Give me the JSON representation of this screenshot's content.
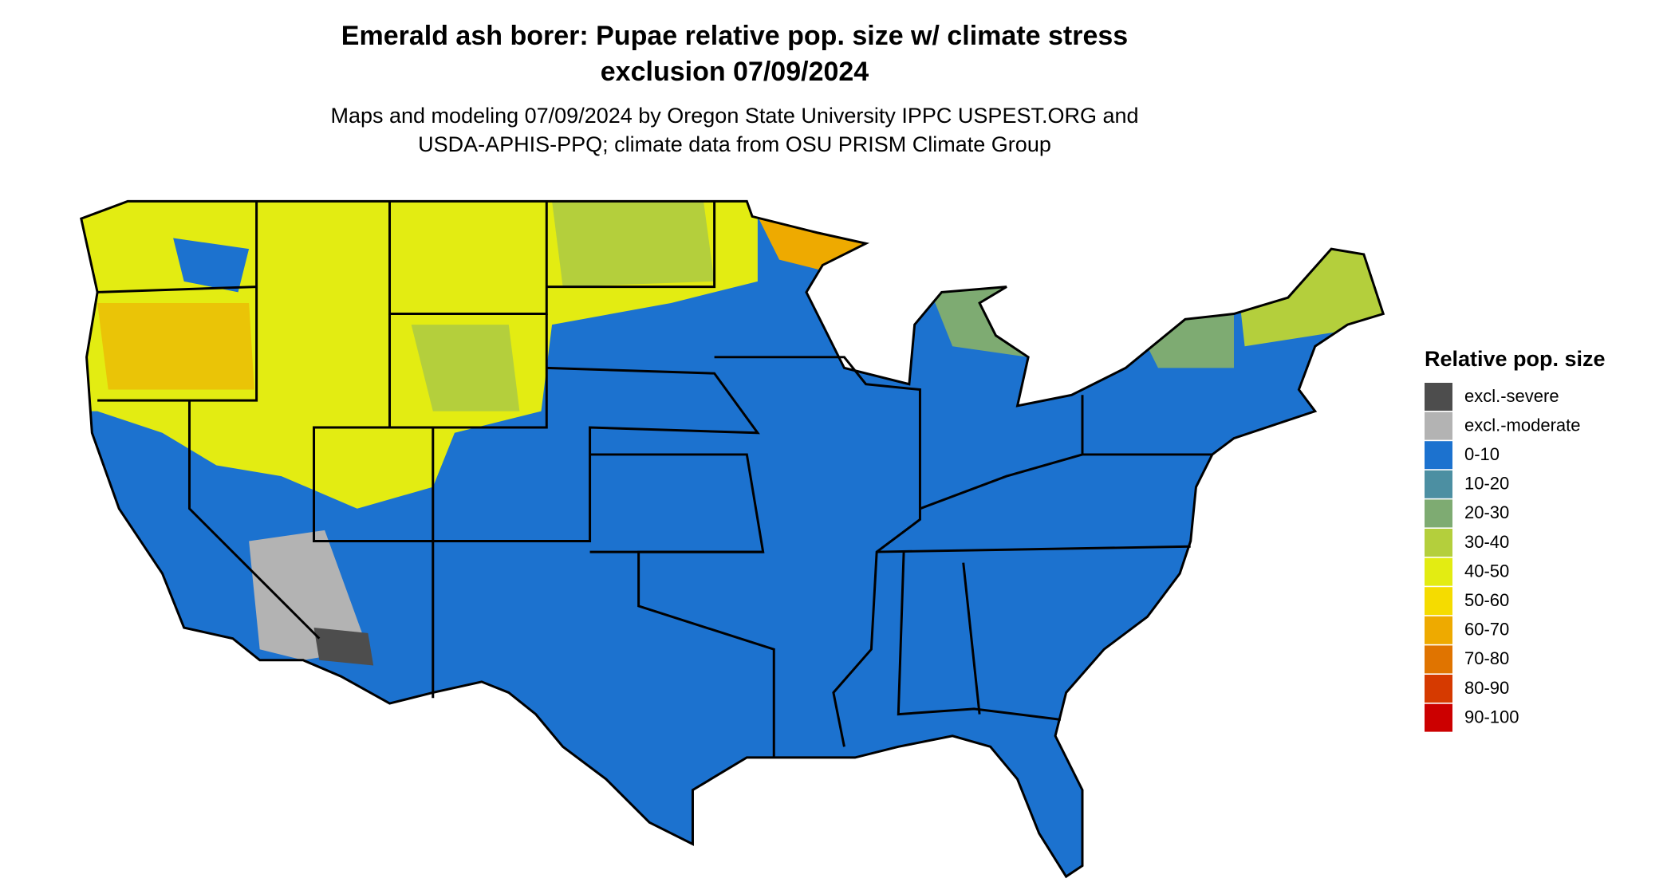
{
  "header": {
    "title_lines": [
      "Emerald ash borer: Pupae relative pop. size w/ climate stress",
      "exclusion 07/09/2024"
    ],
    "subtitle_lines": [
      "Maps and modeling 07/09/2024 by Oregon State University IPPC USPEST.ORG and",
      "USDA-APHIS-PPQ; climate data from OSU PRISM Climate Group"
    ]
  },
  "legend": {
    "title": "Relative pop. size",
    "items": [
      {
        "label": "excl.-severe",
        "color": "#4d4d4d"
      },
      {
        "label": "excl.-moderate",
        "color": "#b3b3b3"
      },
      {
        "label": "0-10",
        "color": "#1c72cf"
      },
      {
        "label": "10-20",
        "color": "#4c8fa2"
      },
      {
        "label": "20-30",
        "color": "#7eab72"
      },
      {
        "label": "30-40",
        "color": "#b4cf3c"
      },
      {
        "label": "40-50",
        "color": "#e3ec12"
      },
      {
        "label": "50-60",
        "color": "#f5dc00"
      },
      {
        "label": "60-70",
        "color": "#eeaa00"
      },
      {
        "label": "70-80",
        "color": "#e07400"
      },
      {
        "label": "80-90",
        "color": "#d63a00"
      },
      {
        "label": "90-100",
        "color": "#cc0000"
      }
    ]
  }
}
